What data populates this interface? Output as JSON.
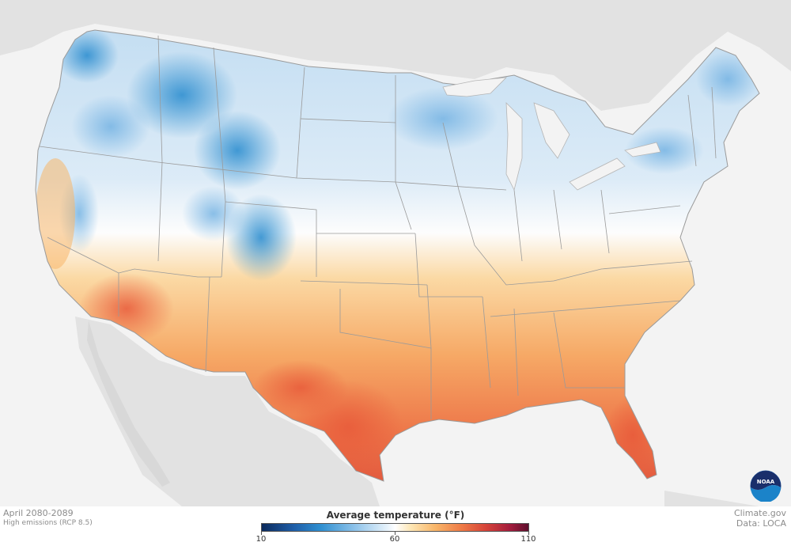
{
  "map": {
    "legend": {
      "title": "Average temperature (°F)",
      "ticks": [
        "10",
        "60",
        "110"
      ],
      "scale_min": 10,
      "scale_mid": 60,
      "scale_max": 110,
      "colors": [
        "#0b2a5c",
        "#2f8fd0",
        "#ffffff",
        "#f8b66a",
        "#d6443a",
        "#5e0f2e"
      ]
    },
    "period": "April 2080-2089",
    "scenario": "High emissions (RCP 8.5)",
    "credit": {
      "source": "Climate.gov",
      "data": "Data: LOCA"
    },
    "logo": {
      "text": "NOAA",
      "icon": "noaa-logo-icon"
    }
  }
}
